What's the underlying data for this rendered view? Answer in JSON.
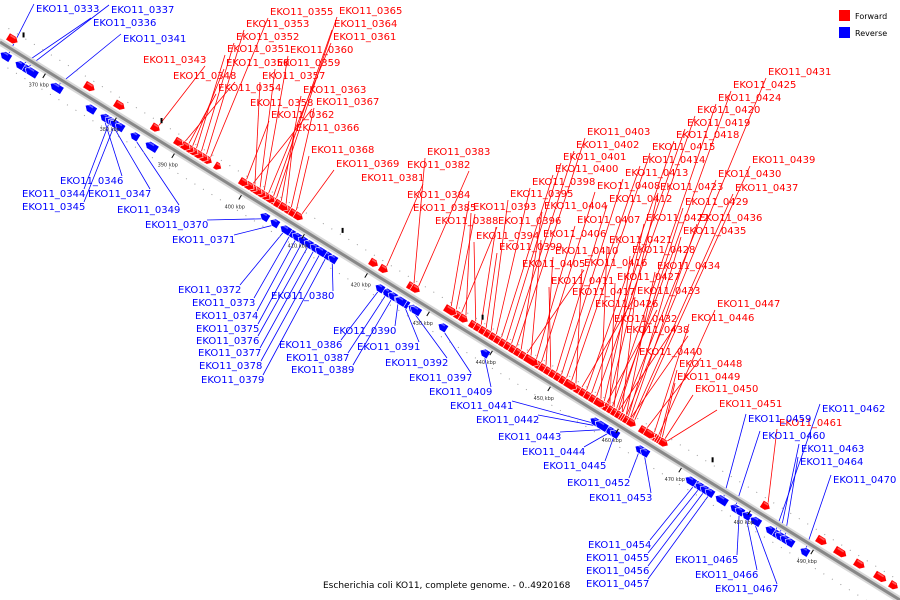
{
  "caption": "Escherichia coli KO11, complete genome. - 0..4920168",
  "legend": {
    "forward_label": "Forward",
    "reverse_label": "Reverse",
    "forward_color": "#ff0000",
    "reverse_color": "#0000ff"
  },
  "colors": {
    "backbone": "#888888",
    "forward": "#ff0000",
    "reverse": "#0000ff",
    "forward_leader": "#ff0000",
    "reverse_leader": "#0000ff"
  },
  "ticks": [
    "370 kbp",
    "380 kbp",
    "390 kbp",
    "400 kbp",
    "410 kbp",
    "420 kbp",
    "430 kbp",
    "440 kbp",
    "450 kbp",
    "460 kbp",
    "470 kbp",
    "480 kbp",
    "490 kbp"
  ],
  "forward_genes": [
    "EKO11_0355",
    "EKO11_0365",
    "EKO11_0353",
    "EKO11_0364",
    "EKO11_0352",
    "EKO11_0361",
    "EKO11_0351",
    "EKO11_0360",
    "EKO11_0343",
    "EKO11_0350",
    "EKO11_0359",
    "EKO11_0348",
    "EKO11_0357",
    "EKO11_0354",
    "EKO11_0363",
    "EKO11_0358",
    "EKO11_0367",
    "EKO11_0362",
    "EKO11_0366",
    "EKO11_0368",
    "EKO11_0369",
    "EKO11_0381",
    "EKO11_0383",
    "EKO11_0382",
    "EKO11_0384",
    "EKO11_0385",
    "EKO11_0388",
    "EKO11_0393",
    "EKO11_0394",
    "EKO11_0396",
    "EKO11_0399",
    "EKO11_0395",
    "EKO11_0398",
    "EKO11_0400",
    "EKO11_0401",
    "EKO11_0402",
    "EKO11_0403",
    "EKO11_0404",
    "EKO11_0405",
    "EKO11_0406",
    "EKO11_0407",
    "EKO11_0408",
    "EKO11_0410",
    "EKO11_0411",
    "EKO11_0412",
    "EKO11_0413",
    "EKO11_0414",
    "EKO11_0415",
    "EKO11_0416",
    "EKO11_0417",
    "EKO11_0418",
    "EKO11_0419",
    "EKO11_0420",
    "EKO11_0421",
    "EKO11_0422",
    "EKO11_0423",
    "EKO11_0424",
    "EKO11_0425",
    "EKO11_0426",
    "EKO11_0427",
    "EKO11_0428",
    "EKO11_0429",
    "EKO11_0430",
    "EKO11_0431",
    "EKO11_0432",
    "EKO11_0433",
    "EKO11_0434",
    "EKO11_0435",
    "EKO11_0436",
    "EKO11_0437",
    "EKO11_0438",
    "EKO11_0439",
    "EKO11_0440",
    "EKO11_0446",
    "EKO11_0447",
    "EKO11_0448",
    "EKO11_0449",
    "EKO11_0450",
    "EKO11_0451",
    "EKO11_0461"
  ],
  "reverse_genes": [
    "EKO11_0333",
    "EKO11_0337",
    "EKO11_0336",
    "EKO11_0341",
    "EKO11_0346",
    "EKO11_0344",
    "EKO11_0347",
    "EKO11_0345",
    "EKO11_0349",
    "EKO11_0370",
    "EKO11_0371",
    "EKO11_0372",
    "EKO11_0373",
    "EKO11_0374",
    "EKO11_0375",
    "EKO11_0376",
    "EKO11_0377",
    "EKO11_0378",
    "EKO11_0379",
    "EKO11_0380",
    "EKO11_0386",
    "EKO11_0387",
    "EKO11_0389",
    "EKO11_0390",
    "EKO11_0391",
    "EKO11_0392",
    "EKO11_0397",
    "EKO11_0409",
    "EKO11_0441",
    "EKO11_0442",
    "EKO11_0443",
    "EKO11_0444",
    "EKO11_0445",
    "EKO11_0452",
    "EKO11_0453",
    "EKO11_0454",
    "EKO11_0455",
    "EKO11_0456",
    "EKO11_0457",
    "EKO11_0459",
    "EKO11_0460",
    "EKO11_0462",
    "EKO11_0463",
    "EKO11_0464",
    "EKO11_0465",
    "EKO11_0466",
    "EKO11_0467",
    "EKO11_0470"
  ]
}
